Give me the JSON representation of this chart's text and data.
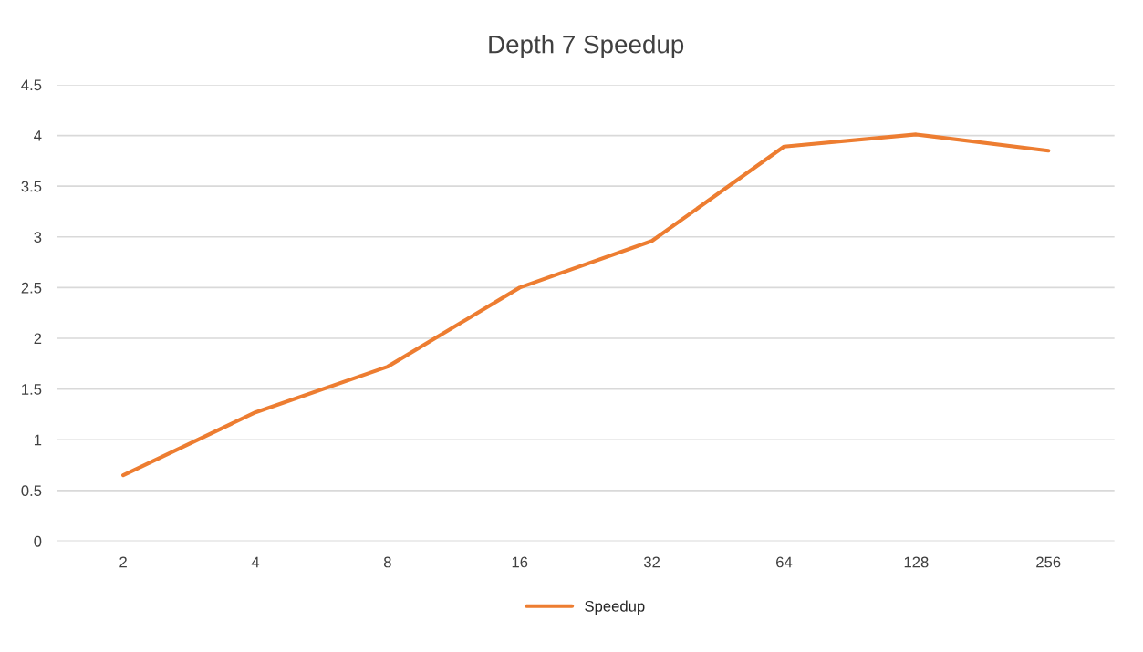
{
  "chart_data": {
    "type": "line",
    "title": "Depth 7 Speedup",
    "categories": [
      "2",
      "4",
      "8",
      "16",
      "32",
      "64",
      "128",
      "256"
    ],
    "series": [
      {
        "name": "Speedup",
        "color": "#ed7d31",
        "values": [
          0.65,
          1.27,
          1.72,
          2.5,
          2.96,
          3.89,
          4.01,
          3.85
        ]
      }
    ],
    "ylim": [
      0,
      4.5
    ],
    "yticks": [
      {
        "value": 0,
        "label": "0"
      },
      0.5,
      {
        "value": 1,
        "label": "1"
      },
      1.5,
      {
        "value": 2,
        "label": "2"
      },
      2.5,
      {
        "value": 3,
        "label": "3"
      },
      3.5,
      {
        "value": 4,
        "label": "4"
      },
      4.5
    ],
    "grid": "y",
    "legend": "bottom",
    "marker": "none",
    "line_style": "solid"
  }
}
